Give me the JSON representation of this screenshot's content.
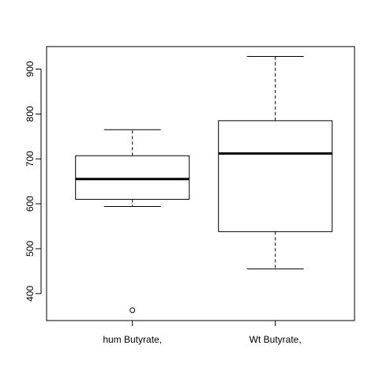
{
  "chart_data": {
    "type": "boxplot",
    "title": "",
    "xlabel": "",
    "ylabel": "",
    "ylim": [
      340,
      950
    ],
    "y_ticks": [
      400,
      500,
      600,
      700,
      800,
      900
    ],
    "grid": false,
    "categories": [
      "hum Butyrate,",
      "Wt Butyrate,"
    ],
    "boxes": [
      {
        "category": "hum Butyrate,",
        "whisker_low": 594,
        "q1": 610,
        "median": 655,
        "q3": 707,
        "whisker_high": 765,
        "outliers": [
          363
        ]
      },
      {
        "category": "Wt Butyrate,",
        "whisker_low": 455,
        "q1": 538,
        "median": 712,
        "q3": 785,
        "whisker_high": 928,
        "outliers": []
      }
    ]
  }
}
